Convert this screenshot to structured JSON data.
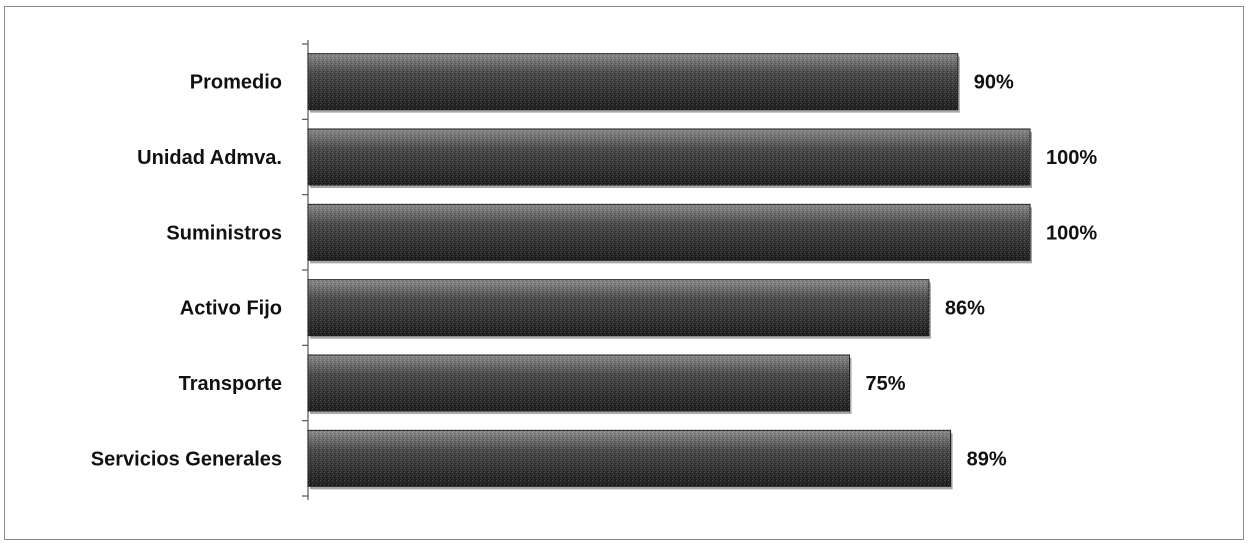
{
  "chart_data": {
    "type": "bar",
    "orientation": "horizontal",
    "categories": [
      "Promedio",
      "Unidad Admva.",
      "Suministros",
      "Activo Fijo",
      "Transporte",
      "Servicios Generales"
    ],
    "values": [
      90,
      100,
      100,
      86,
      75,
      89
    ],
    "data_labels": [
      "90%",
      "100%",
      "100%",
      "86%",
      "75%",
      "89%"
    ],
    "value_unit": "%",
    "xlim": [
      0,
      100
    ],
    "title": "",
    "xlabel": "",
    "ylabel": "",
    "grid": false,
    "legend": "none",
    "bar_color": "#4a4a4a",
    "bar_highlight_color": "#8c8c8c",
    "bar_edge_color": "#1e1e1e"
  }
}
